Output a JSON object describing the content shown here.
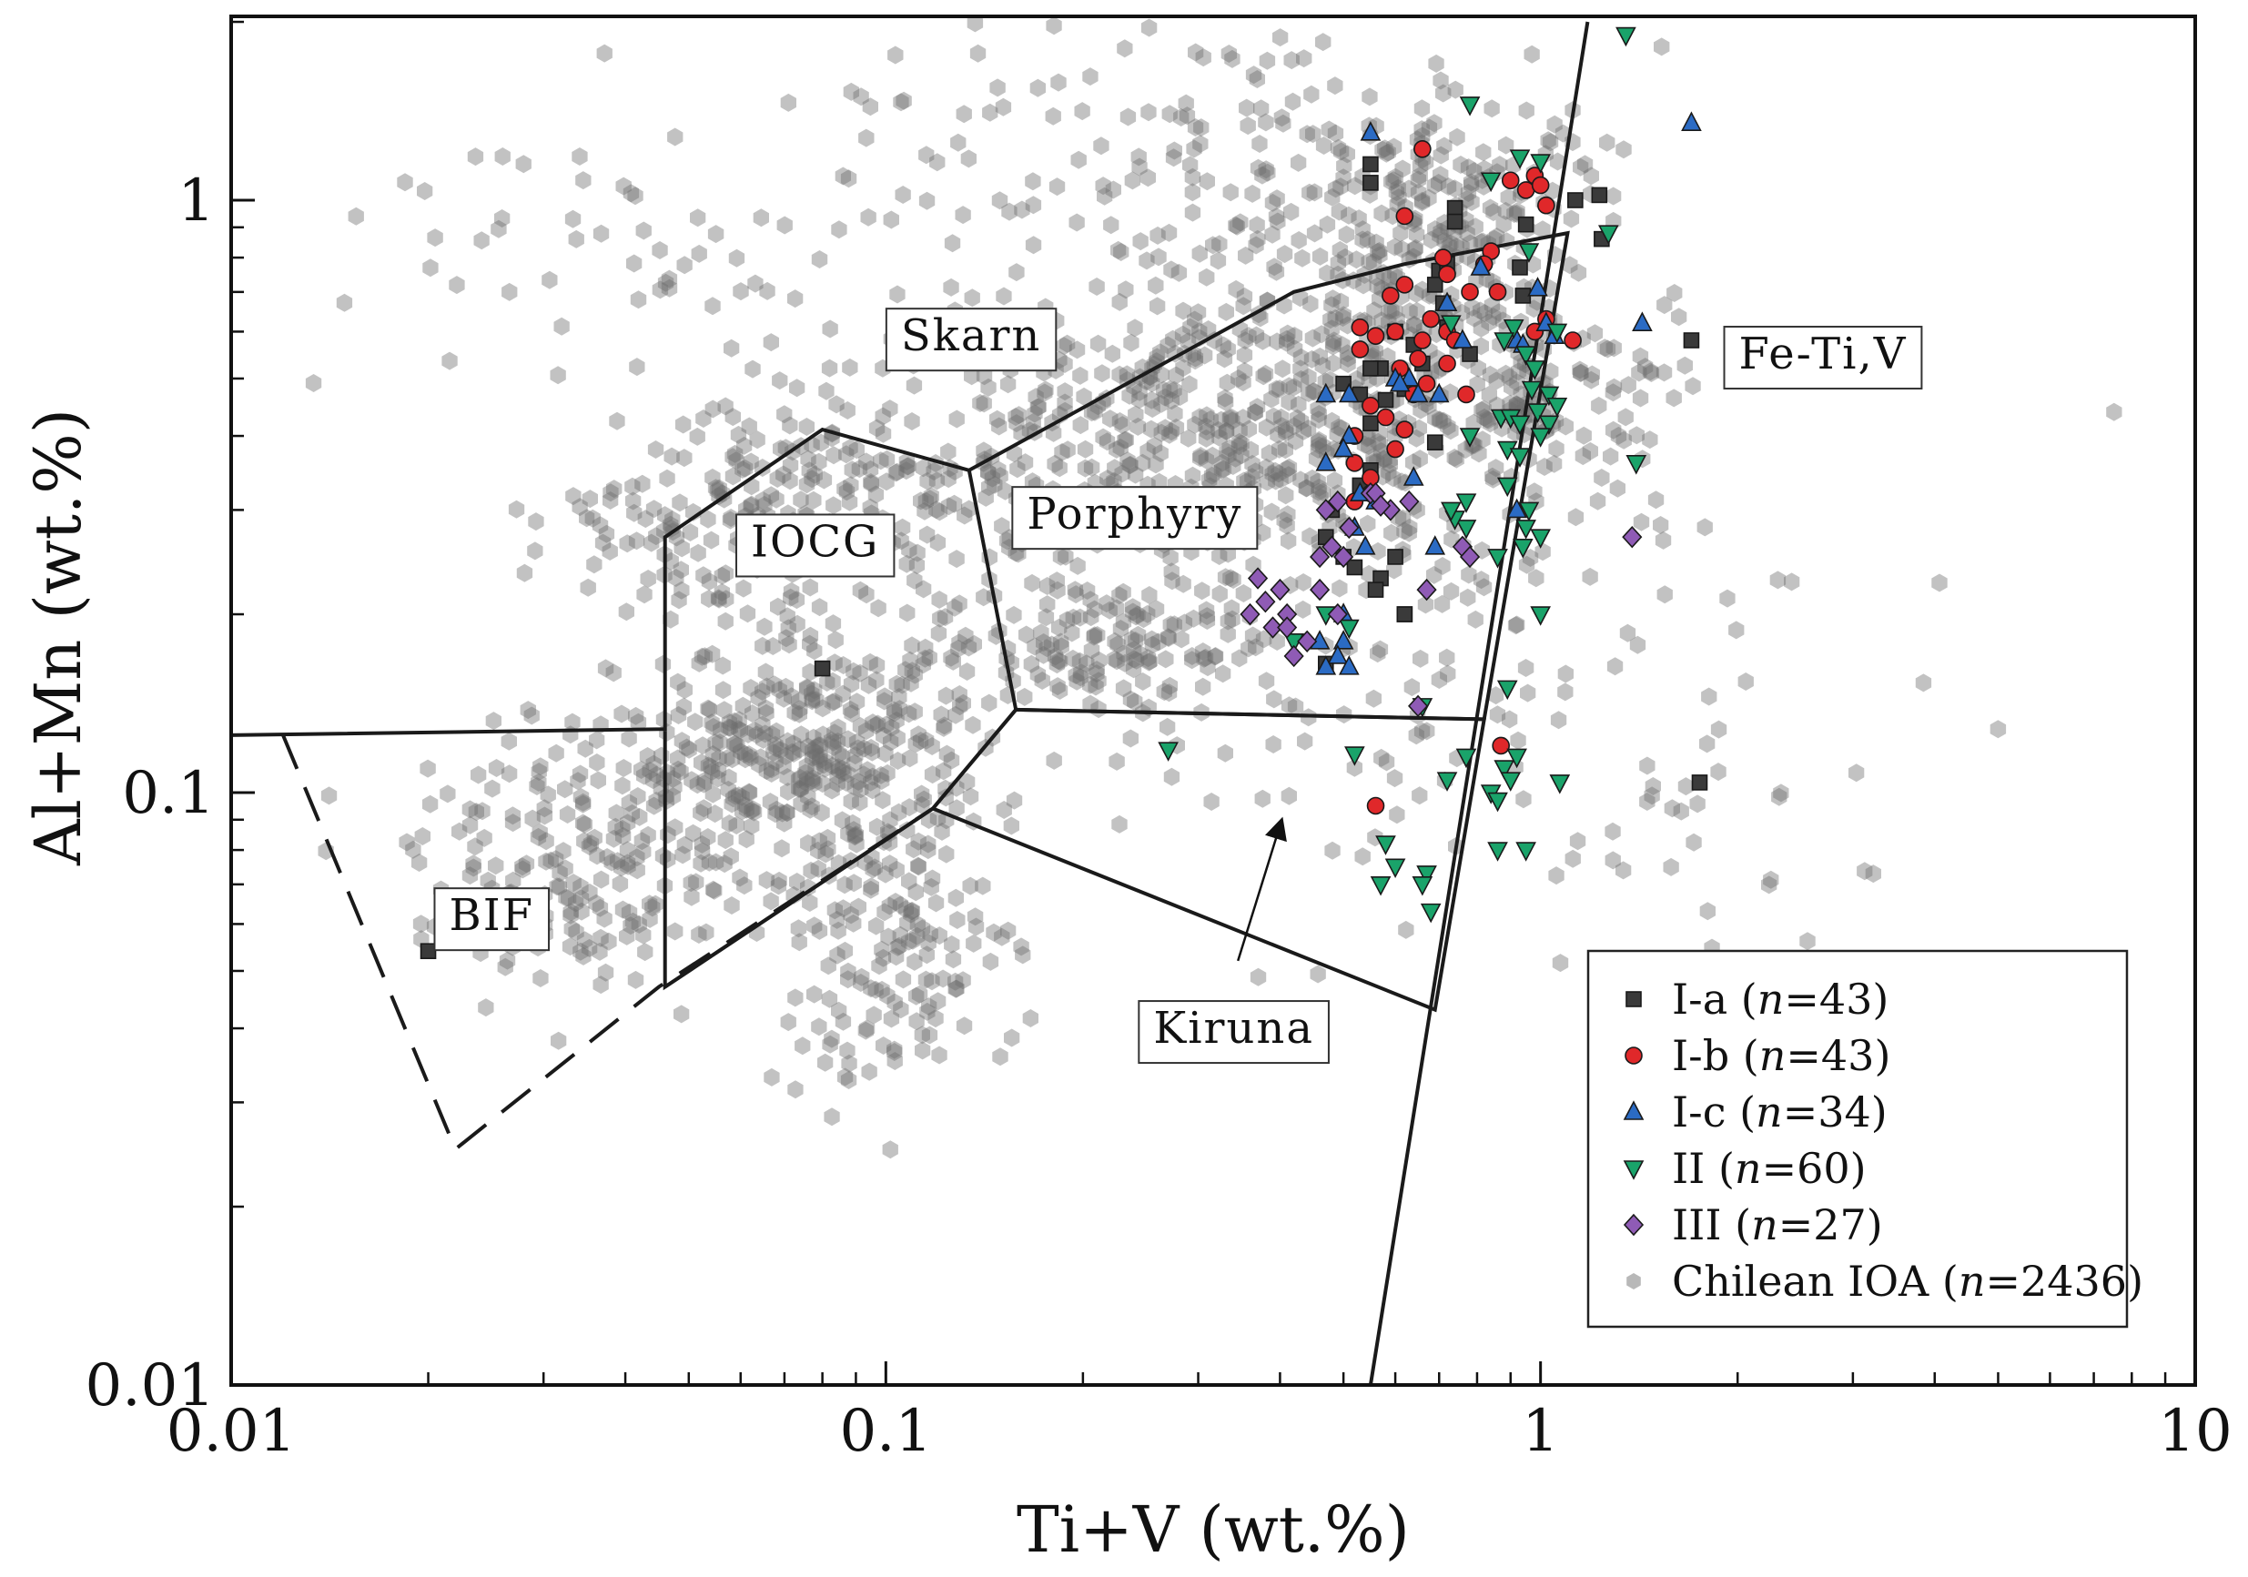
{
  "chart_data": {
    "type": "scatter",
    "scale": "log-log",
    "xlabel": "Ti+V (wt.%)",
    "ylabel": "Al+Mn (wt.%)",
    "xlim": [
      0.01,
      10
    ],
    "ylim": [
      0.01,
      2
    ],
    "x_ticks": [
      {
        "value": 0.01,
        "label": "0.01"
      },
      {
        "value": 0.1,
        "label": "0.1"
      },
      {
        "value": 1,
        "label": "1"
      },
      {
        "value": 10,
        "label": "10"
      }
    ],
    "y_ticks": [
      {
        "value": 0.01,
        "label": "0.01"
      },
      {
        "value": 0.1,
        "label": "0.1"
      },
      {
        "value": 1,
        "label": "1"
      }
    ],
    "regions": [
      {
        "name": "BIF",
        "label": "BIF",
        "label_pos": [
          0.025,
          0.062
        ],
        "boundary": [
          [
            0.012,
            0.125
          ],
          [
            0.022,
            0.025
          ],
          [
            0.045,
            0.047
          ],
          [
            0.118,
            0.094
          ]
        ],
        "dashed": true
      },
      {
        "name": "IOCG",
        "label": "IOCG",
        "label_pos": [
          0.078,
          0.265
        ],
        "boundary": [
          [
            0.01,
            0.125
          ],
          [
            0.046,
            0.128
          ],
          [
            0.046,
            0.27
          ],
          [
            0.08,
            0.41
          ],
          [
            0.134,
            0.35
          ],
          [
            0.158,
            0.138
          ],
          [
            0.118,
            0.094
          ],
          [
            0.046,
            0.047
          ],
          [
            0.046,
            0.128
          ]
        ]
      },
      {
        "name": "Porphyry",
        "label": "Porphyry",
        "label_pos": [
          0.24,
          0.295
        ],
        "boundary": [
          [
            0.134,
            0.35
          ],
          [
            0.42,
            0.7
          ],
          [
            0.62,
            0.78
          ],
          [
            1.1,
            0.88
          ],
          [
            0.82,
            0.133
          ],
          [
            0.158,
            0.138
          ]
        ]
      },
      {
        "name": "Kiruna",
        "label": "Kiruna",
        "label_pos": [
          0.34,
          0.04
        ],
        "boundary": [
          [
            0.118,
            0.094
          ],
          [
            0.158,
            0.138
          ],
          [
            0.82,
            0.133
          ],
          [
            0.69,
            0.043
          ],
          [
            0.118,
            0.094
          ]
        ]
      },
      {
        "name": "Skarn",
        "label": "Skarn",
        "label_pos": [
          0.135,
          0.59
        ]
      },
      {
        "name": "Fe-Ti,V",
        "label": "Fe-Ti,V",
        "label_pos": [
          2.7,
          0.55
        ]
      }
    ],
    "divider_line": [
      [
        0.55,
        0.01
      ],
      [
        1.18,
        2.0
      ]
    ],
    "kiruna_arrow": {
      "from": [
        0.345,
        0.052
      ],
      "to": [
        0.4,
        0.088
      ]
    },
    "series": [
      {
        "id": "Ia",
        "name": "I-a",
        "n_label": "43",
        "marker": "square",
        "color": "#3a3a3a",
        "points": [
          [
            0.55,
            1.15
          ],
          [
            0.55,
            1.07
          ],
          [
            0.74,
            0.97
          ],
          [
            0.74,
            0.92
          ],
          [
            0.7,
            0.76
          ],
          [
            0.69,
            0.72
          ],
          [
            0.71,
            0.67
          ],
          [
            0.72,
            0.61
          ],
          [
            0.64,
            0.57
          ],
          [
            0.6,
            0.6
          ],
          [
            0.57,
            0.52
          ],
          [
            0.55,
            0.52
          ],
          [
            0.58,
            0.46
          ],
          [
            0.62,
            0.48
          ],
          [
            0.53,
            0.47
          ],
          [
            0.5,
            0.49
          ],
          [
            0.55,
            0.42
          ],
          [
            0.69,
            0.39
          ],
          [
            0.55,
            0.35
          ],
          [
            0.53,
            0.33
          ],
          [
            0.48,
            0.3
          ],
          [
            0.47,
            0.27
          ],
          [
            0.5,
            0.25
          ],
          [
            0.52,
            0.24
          ],
          [
            0.57,
            0.23
          ],
          [
            0.6,
            0.25
          ],
          [
            0.56,
            0.22
          ],
          [
            0.62,
            0.2
          ],
          [
            0.47,
            0.165
          ],
          [
            0.93,
            0.77
          ],
          [
            0.94,
            0.69
          ],
          [
            0.95,
            0.91
          ],
          [
            1.13,
            1.0
          ],
          [
            1.23,
            1.02
          ],
          [
            1.24,
            0.86
          ],
          [
            1.7,
            0.58
          ],
          [
            0.62,
            0.2
          ],
          [
            0.66,
            0.53
          ],
          [
            0.78,
            0.55
          ],
          [
            0.72,
            0.78
          ],
          [
            1.75,
            0.104
          ],
          [
            0.08,
            0.162
          ],
          [
            0.02,
            0.054
          ]
        ]
      },
      {
        "id": "Ib",
        "name": "I-b",
        "n_label": "43",
        "marker": "circle",
        "color": "#e0282a",
        "points": [
          [
            0.66,
            1.22
          ],
          [
            0.95,
            1.04
          ],
          [
            0.98,
            1.1
          ],
          [
            1.0,
            1.06
          ],
          [
            1.02,
            0.98
          ],
          [
            0.9,
            1.08
          ],
          [
            0.62,
            0.94
          ],
          [
            0.84,
            0.82
          ],
          [
            0.82,
            0.78
          ],
          [
            0.71,
            0.8
          ],
          [
            0.72,
            0.75
          ],
          [
            0.78,
            0.7
          ],
          [
            0.62,
            0.72
          ],
          [
            0.59,
            0.69
          ],
          [
            0.86,
            0.7
          ],
          [
            0.68,
            0.63
          ],
          [
            0.72,
            0.6
          ],
          [
            0.74,
            0.58
          ],
          [
            0.66,
            0.58
          ],
          [
            0.6,
            0.6
          ],
          [
            0.56,
            0.59
          ],
          [
            0.53,
            0.61
          ],
          [
            0.53,
            0.56
          ],
          [
            0.65,
            0.54
          ],
          [
            0.61,
            0.52
          ],
          [
            0.72,
            0.53
          ],
          [
            0.67,
            0.49
          ],
          [
            0.64,
            0.47
          ],
          [
            0.77,
            0.47
          ],
          [
            0.55,
            0.45
          ],
          [
            0.58,
            0.43
          ],
          [
            0.52,
            0.4
          ],
          [
            0.62,
            0.41
          ],
          [
            0.6,
            0.38
          ],
          [
            0.52,
            0.36
          ],
          [
            0.55,
            0.34
          ],
          [
            0.55,
            0.32
          ],
          [
            0.52,
            0.31
          ],
          [
            1.02,
            0.63
          ],
          [
            0.98,
            0.6
          ],
          [
            1.12,
            0.58
          ],
          [
            0.56,
            0.095
          ],
          [
            0.87,
            0.12
          ]
        ]
      },
      {
        "id": "Ic",
        "name": "I-c",
        "n_label": "34",
        "marker": "triangle-up",
        "color": "#2b6bc4",
        "points": [
          [
            0.55,
            1.3
          ],
          [
            1.7,
            1.35
          ],
          [
            1.43,
            0.62
          ],
          [
            0.81,
            0.77
          ],
          [
            0.99,
            0.71
          ],
          [
            1.02,
            0.62
          ],
          [
            0.92,
            0.58
          ],
          [
            0.76,
            0.58
          ],
          [
            0.94,
            0.57
          ],
          [
            0.63,
            0.5
          ],
          [
            0.6,
            0.5
          ],
          [
            0.65,
            0.47
          ],
          [
            0.7,
            0.47
          ],
          [
            0.47,
            0.47
          ],
          [
            0.51,
            0.47
          ],
          [
            0.51,
            0.4
          ],
          [
            0.5,
            0.38
          ],
          [
            0.47,
            0.36
          ],
          [
            0.64,
            0.34
          ],
          [
            0.53,
            0.32
          ],
          [
            0.56,
            0.31
          ],
          [
            0.52,
            0.28
          ],
          [
            0.54,
            0.26
          ],
          [
            0.69,
            0.26
          ],
          [
            0.92,
            0.3
          ],
          [
            0.5,
            0.2
          ],
          [
            0.5,
            0.18
          ],
          [
            0.46,
            0.18
          ],
          [
            0.49,
            0.17
          ],
          [
            0.47,
            0.163
          ],
          [
            0.51,
            0.163
          ],
          [
            1.05,
            0.59
          ],
          [
            0.72,
            0.67
          ],
          [
            0.61,
            0.49
          ]
        ]
      },
      {
        "id": "II",
        "name": "II",
        "n_label": "60",
        "marker": "triangle-down",
        "color": "#1aa36a",
        "points": [
          [
            1.35,
            1.9
          ],
          [
            0.78,
            1.45
          ],
          [
            0.93,
            1.18
          ],
          [
            1.0,
            1.16
          ],
          [
            0.84,
            1.08
          ],
          [
            1.27,
            0.88
          ],
          [
            0.96,
            0.82
          ],
          [
            0.73,
            0.62
          ],
          [
            0.91,
            0.61
          ],
          [
            1.06,
            0.6
          ],
          [
            0.88,
            0.58
          ],
          [
            0.95,
            0.55
          ],
          [
            0.98,
            0.52
          ],
          [
            0.97,
            0.48
          ],
          [
            1.03,
            0.47
          ],
          [
            1.06,
            0.45
          ],
          [
            0.87,
            0.43
          ],
          [
            0.9,
            0.43
          ],
          [
            0.93,
            0.42
          ],
          [
            0.99,
            0.44
          ],
          [
            1.03,
            0.42
          ],
          [
            1.0,
            0.4
          ],
          [
            0.78,
            0.4
          ],
          [
            0.89,
            0.38
          ],
          [
            0.93,
            0.37
          ],
          [
            1.4,
            0.36
          ],
          [
            0.89,
            0.33
          ],
          [
            0.96,
            0.3
          ],
          [
            0.95,
            0.28
          ],
          [
            1.0,
            0.27
          ],
          [
            0.77,
            0.28
          ],
          [
            0.74,
            0.29
          ],
          [
            0.86,
            0.25
          ],
          [
            0.94,
            0.26
          ],
          [
            1.0,
            0.2
          ],
          [
            0.89,
            0.15
          ],
          [
            0.66,
            0.14
          ],
          [
            0.27,
            0.118
          ],
          [
            0.52,
            0.116
          ],
          [
            0.77,
            0.115
          ],
          [
            0.92,
            0.115
          ],
          [
            0.88,
            0.11
          ],
          [
            0.72,
            0.105
          ],
          [
            0.84,
            0.1
          ],
          [
            0.86,
            0.097
          ],
          [
            0.9,
            0.105
          ],
          [
            1.07,
            0.104
          ],
          [
            0.58,
            0.082
          ],
          [
            0.6,
            0.075
          ],
          [
            0.67,
            0.073
          ],
          [
            0.57,
            0.07
          ],
          [
            0.66,
            0.07
          ],
          [
            0.68,
            0.063
          ],
          [
            0.86,
            0.08
          ],
          [
            0.95,
            0.08
          ],
          [
            0.47,
            0.2
          ],
          [
            0.51,
            0.19
          ],
          [
            0.77,
            0.31
          ],
          [
            0.73,
            0.3
          ],
          [
            0.42,
            0.18
          ]
        ]
      },
      {
        "id": "III",
        "name": "III",
        "n_label": "27",
        "marker": "diamond",
        "color": "#8f5bb5",
        "points": [
          [
            1.38,
            0.27
          ],
          [
            0.55,
            0.32
          ],
          [
            0.49,
            0.31
          ],
          [
            0.47,
            0.3
          ],
          [
            0.51,
            0.28
          ],
          [
            0.48,
            0.26
          ],
          [
            0.46,
            0.25
          ],
          [
            0.5,
            0.25
          ],
          [
            0.46,
            0.22
          ],
          [
            0.49,
            0.2
          ],
          [
            0.4,
            0.22
          ],
          [
            0.37,
            0.23
          ],
          [
            0.38,
            0.21
          ],
          [
            0.36,
            0.2
          ],
          [
            0.41,
            0.2
          ],
          [
            0.39,
            0.19
          ],
          [
            0.41,
            0.19
          ],
          [
            0.44,
            0.18
          ],
          [
            0.42,
            0.17
          ],
          [
            0.67,
            0.22
          ],
          [
            0.65,
            0.14
          ],
          [
            0.59,
            0.3
          ],
          [
            0.56,
            0.32
          ],
          [
            0.76,
            0.26
          ],
          [
            0.78,
            0.25
          ],
          [
            0.57,
            0.305
          ],
          [
            0.63,
            0.31
          ]
        ]
      },
      {
        "id": "IOA",
        "name": "Chilean IOA",
        "n_label": "2436",
        "marker": "hexagon",
        "color": "#8a8a8a",
        "clusters": [
          {
            "x": 0.32,
            "y": 0.38,
            "sx": 0.25,
            "sy": 0.11,
            "n": 420
          },
          {
            "x": 0.55,
            "y": 0.62,
            "sx": 0.18,
            "sy": 0.16,
            "n": 260
          },
          {
            "x": 0.72,
            "y": 0.95,
            "sx": 0.12,
            "sy": 0.1,
            "n": 160
          },
          {
            "x": 0.22,
            "y": 0.18,
            "sx": 0.14,
            "sy": 0.06,
            "n": 150
          },
          {
            "x": 0.075,
            "y": 0.115,
            "sx": 0.14,
            "sy": 0.09,
            "n": 360
          },
          {
            "x": 0.08,
            "y": 0.3,
            "sx": 0.14,
            "sy": 0.1,
            "n": 180
          },
          {
            "x": 0.035,
            "y": 0.075,
            "sx": 0.13,
            "sy": 0.1,
            "n": 200
          },
          {
            "x": 0.1,
            "y": 0.055,
            "sx": 0.1,
            "sy": 0.12,
            "n": 160
          },
          {
            "x": 0.045,
            "y": 0.28,
            "sx": 0.08,
            "sy": 0.06,
            "n": 60
          },
          {
            "x": 0.2,
            "y": 0.7,
            "sx": 0.25,
            "sy": 0.2,
            "n": 140
          },
          {
            "x": 0.05,
            "y": 0.8,
            "sx": 0.25,
            "sy": 0.15,
            "n": 60
          },
          {
            "x": 1.0,
            "y": 0.45,
            "sx": 0.08,
            "sy": 0.05,
            "n": 80
          },
          {
            "x": 0.6,
            "y": 0.15,
            "sx": 0.3,
            "sy": 0.2,
            "n": 120
          },
          {
            "x": 0.3,
            "y": 1.6,
            "sx": 0.3,
            "sy": 0.12,
            "n": 60
          },
          {
            "x": 2.5,
            "y": 0.1,
            "sx": 0.25,
            "sy": 0.15,
            "n": 25
          }
        ]
      }
    ]
  },
  "legend": {
    "items": [
      {
        "series": "Ia",
        "label": "I-a",
        "n": "43"
      },
      {
        "series": "Ib",
        "label": "I-b",
        "n": "43"
      },
      {
        "series": "Ic",
        "label": "I-c",
        "n": "34"
      },
      {
        "series": "II",
        "label": "II",
        "n": "60"
      },
      {
        "series": "III",
        "label": "III",
        "n": "27"
      },
      {
        "series": "IOA",
        "label": "Chilean IOA",
        "n": "2436"
      }
    ]
  },
  "colors": {
    "axis": "#111111",
    "region_line": "#1a1a1a",
    "ioa": "#6e6e6e"
  }
}
